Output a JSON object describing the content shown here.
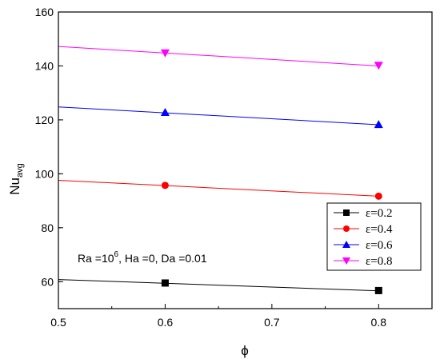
{
  "chart_data": {
    "type": "line",
    "xlabel": "ϕ",
    "ylabel_main": "Nu",
    "ylabel_sub": "avg",
    "xlim": [
      0.5,
      0.85
    ],
    "ylim": [
      50,
      160
    ],
    "xticks": [
      0.5,
      0.6,
      0.7,
      0.8
    ],
    "xtick_labels": [
      "0.5",
      "0.6",
      "0.7",
      "0.8"
    ],
    "yticks": [
      60,
      80,
      100,
      120,
      140,
      160
    ],
    "ytick_labels": [
      "60",
      "80",
      "100",
      "120",
      "140",
      "160"
    ],
    "grid": false,
    "legend_position": "bottom-right",
    "annotation": {
      "part1": "Ra =10",
      "sup": "6",
      "part2": ", Ha =0, Da =0.01"
    },
    "series": [
      {
        "name": "ε=0.2",
        "color": "#000000",
        "marker": "square",
        "line": {
          "x": [
            0.5,
            0.8
          ],
          "y": [
            60.8,
            56.6
          ]
        },
        "points": {
          "x": [
            0.6,
            0.8
          ],
          "y": [
            59.5,
            56.7
          ]
        }
      },
      {
        "name": "ε=0.4",
        "color": "#ff0000",
        "marker": "circle",
        "line": {
          "x": [
            0.5,
            0.8
          ],
          "y": [
            97.6,
            91.7
          ]
        },
        "points": {
          "x": [
            0.6,
            0.8
          ],
          "y": [
            95.7,
            91.7
          ]
        }
      },
      {
        "name": "ε=0.6",
        "color": "#0000ff",
        "marker": "triangle-up",
        "line": {
          "x": [
            0.5,
            0.8
          ],
          "y": [
            124.8,
            118.2
          ]
        },
        "points": {
          "x": [
            0.6,
            0.8
          ],
          "y": [
            122.8,
            118.3
          ]
        }
      },
      {
        "name": "ε=0.8",
        "color": "#ff00ff",
        "marker": "triangle-down",
        "line": {
          "x": [
            0.5,
            0.8
          ],
          "y": [
            147.2,
            140.0
          ]
        },
        "points": {
          "x": [
            0.6,
            0.8
          ],
          "y": [
            144.8,
            140.2
          ]
        }
      }
    ]
  }
}
